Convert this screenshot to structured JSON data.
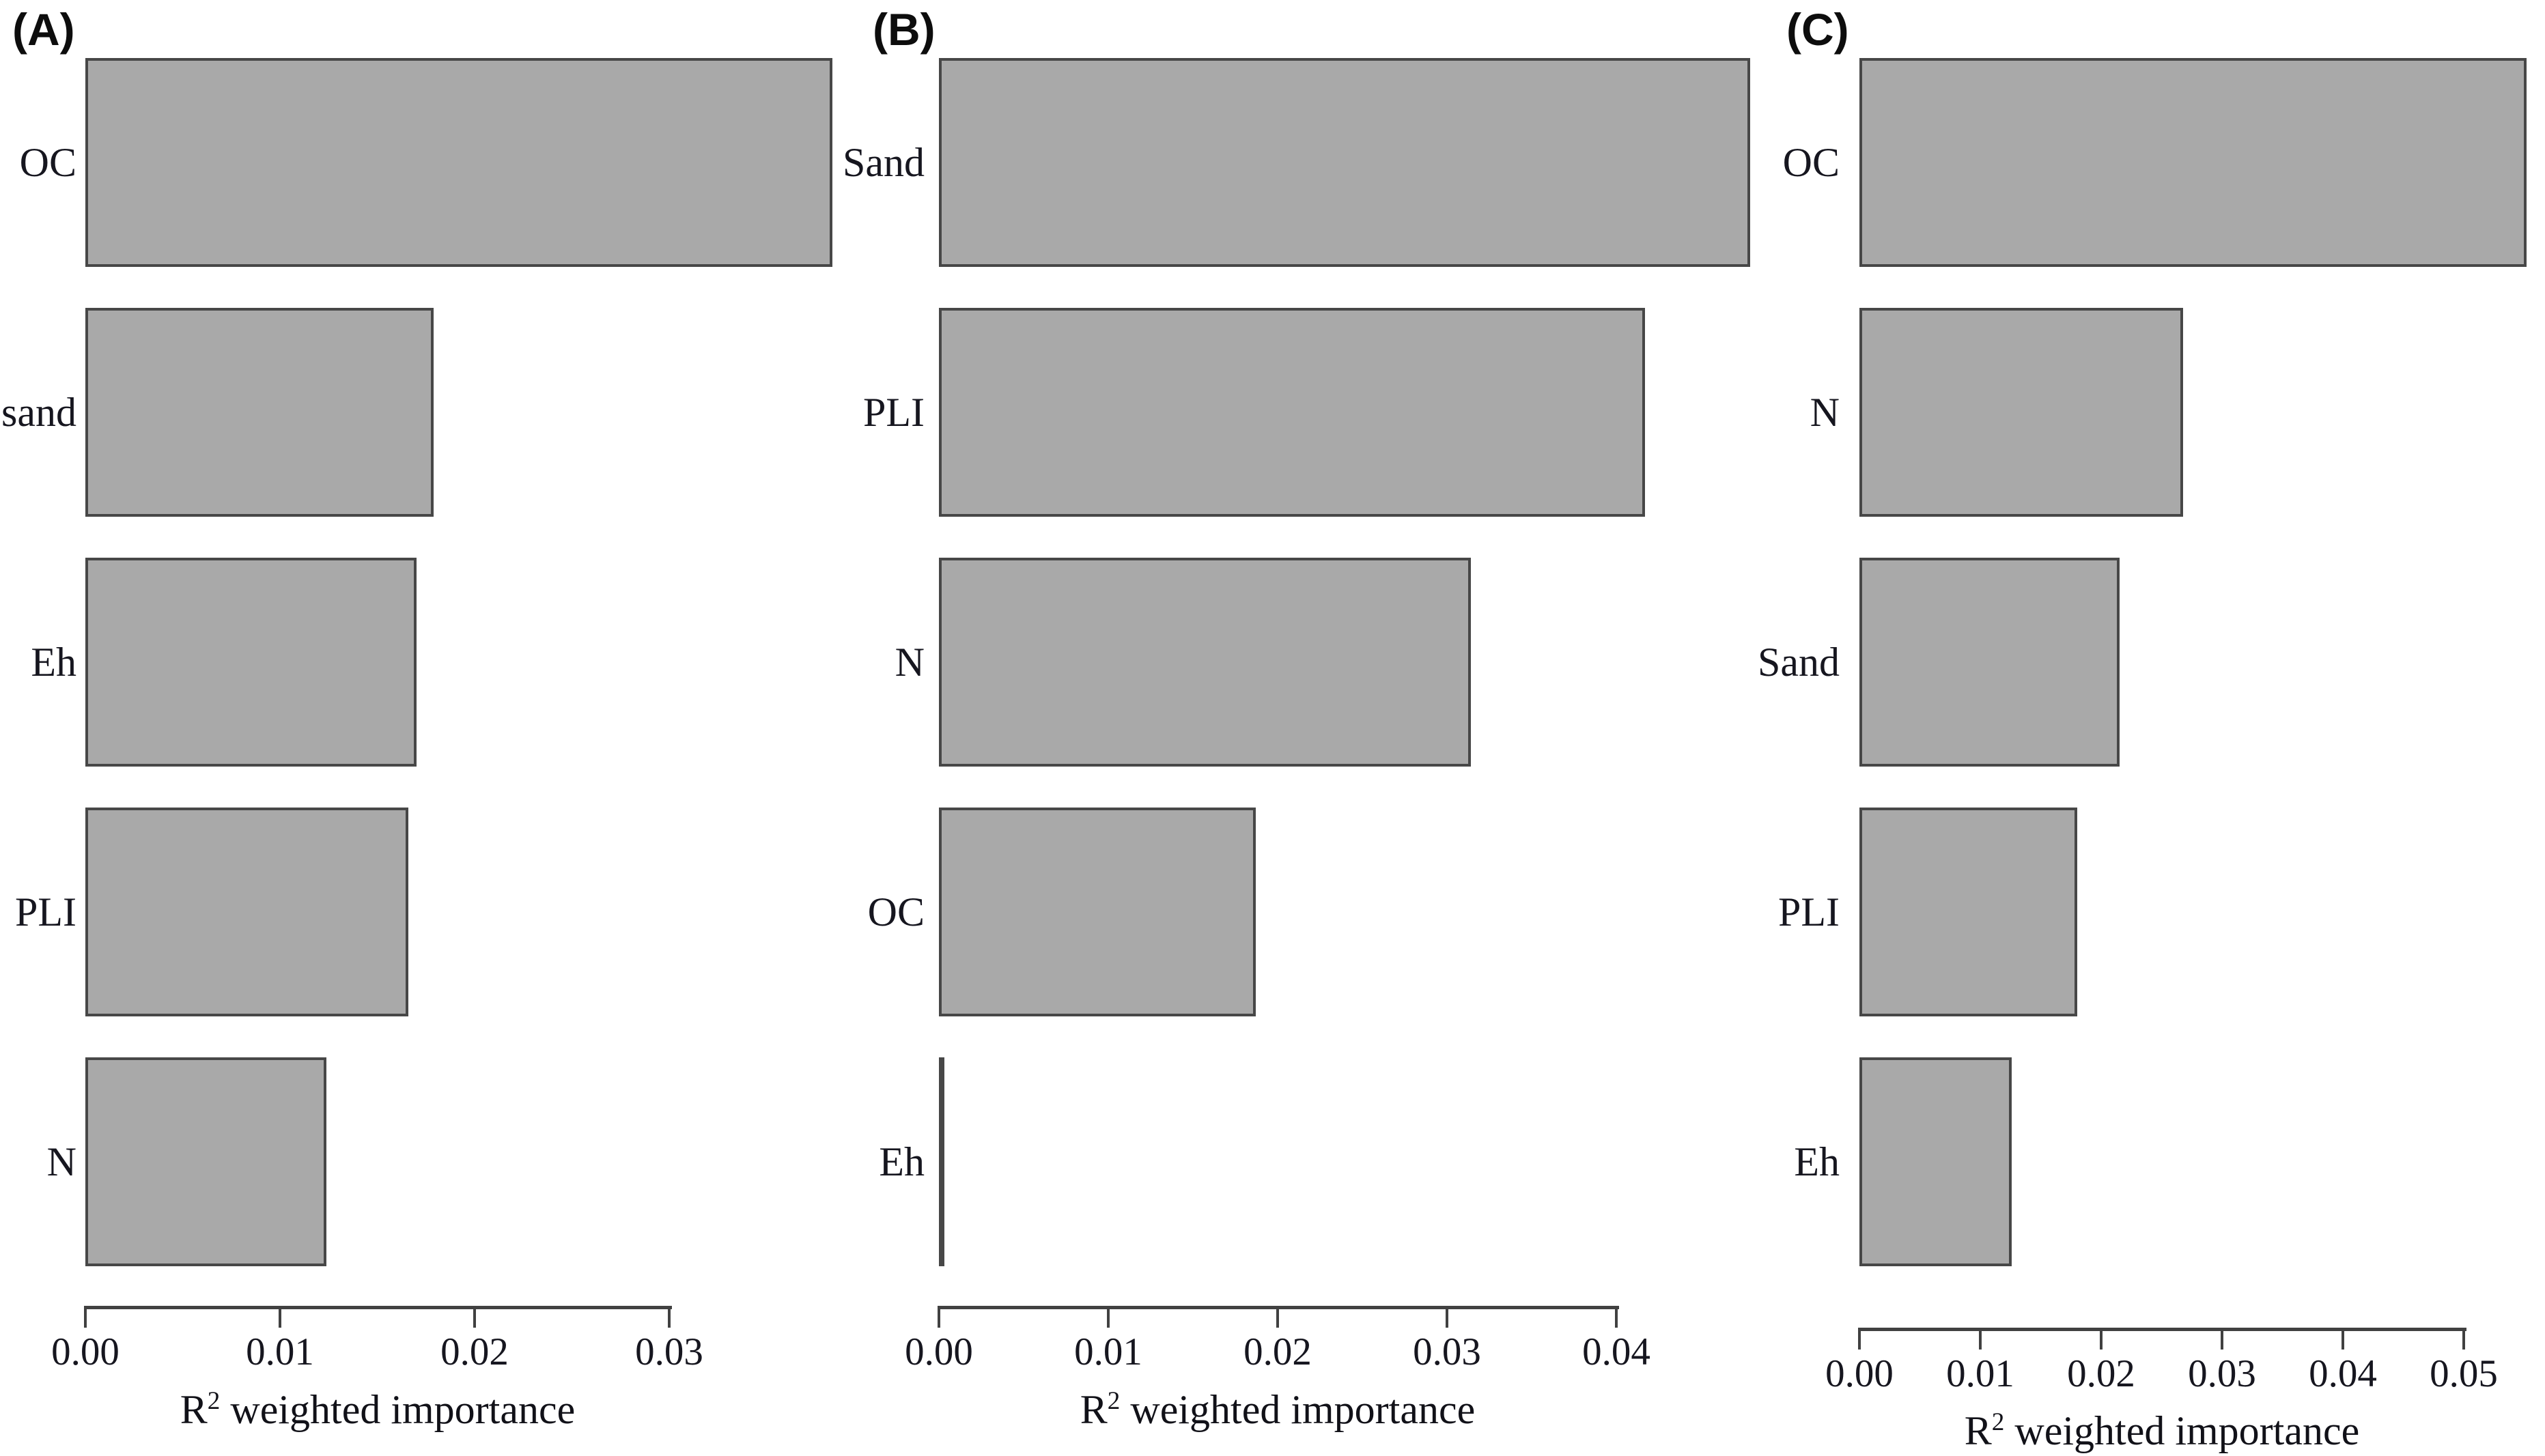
{
  "figure": {
    "background": "#ffffff",
    "bar_fill": "#a9a9a9",
    "bar_border": "#474747",
    "axis_color": "#414141",
    "text_color": "#16161f",
    "axis_title": {
      "prefix": "R",
      "sup": "2",
      "suffix": " weighted importance",
      "full": "R2 weighted importance"
    }
  },
  "chart_data": [
    {
      "type": "bar",
      "orientation": "horizontal",
      "panel_label": "(A)",
      "categories": [
        "OC",
        "sand",
        "Eh",
        "PLI",
        "N"
      ],
      "values": [
        0.0384,
        0.0179,
        0.017,
        0.0166,
        0.0124
      ],
      "xlabel": "R2 weighted importance",
      "ylabel": "",
      "xticks": [
        "0.00",
        "0.01",
        "0.02",
        "0.03"
      ],
      "xtick_values": [
        0,
        0.01,
        0.02,
        0.03
      ],
      "xlim": [
        0,
        0.0384
      ],
      "grid": false,
      "legend": "none"
    },
    {
      "type": "bar",
      "orientation": "horizontal",
      "panel_label": "(B)",
      "categories": [
        "Sand",
        "PLI",
        "N",
        "OC",
        "Eh"
      ],
      "values": [
        0.0479,
        0.0417,
        0.0314,
        0.0187,
        0.0001
      ],
      "xlabel": "R2 weighted importance",
      "ylabel": "",
      "xticks": [
        "0.00",
        "0.01",
        "0.02",
        "0.03",
        "0.04"
      ],
      "xtick_values": [
        0,
        0.01,
        0.02,
        0.03,
        0.04
      ],
      "xlim": [
        0,
        0.0479
      ],
      "grid": false,
      "legend": "none"
    },
    {
      "type": "bar",
      "orientation": "horizontal",
      "panel_label": "(C)",
      "categories": [
        "OC",
        "N",
        "Sand",
        "PLI",
        "Eh"
      ],
      "values": [
        0.0552,
        0.0268,
        0.0215,
        0.018,
        0.0126
      ],
      "xlabel": "R2 weighted importance",
      "ylabel": "",
      "xticks": [
        "0.00",
        "0.01",
        "0.02",
        "0.03",
        "0.04",
        "0.05"
      ],
      "xtick_values": [
        0,
        0.01,
        0.02,
        0.03,
        0.04,
        0.05
      ],
      "xlim": [
        0,
        0.0552
      ],
      "grid": false,
      "legend": "none"
    }
  ]
}
